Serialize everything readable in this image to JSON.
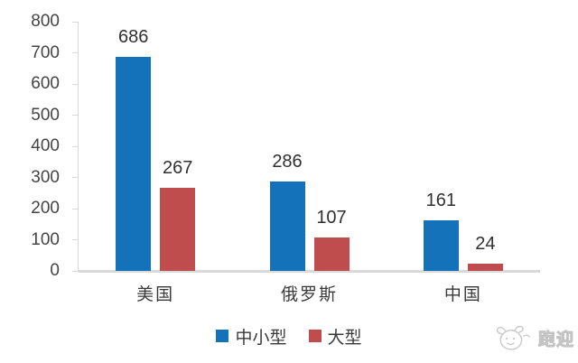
{
  "chart_data": {
    "type": "bar",
    "categories": [
      "美国",
      "俄罗斯",
      "中国"
    ],
    "series": [
      {
        "name": "中小型",
        "color": "#1372BA",
        "values": [
          686,
          286,
          161
        ]
      },
      {
        "name": "大型",
        "color": "#C04D4D",
        "values": [
          267,
          107,
          24
        ]
      }
    ],
    "title": "",
    "xlabel": "",
    "ylabel": "",
    "ylim": [
      0,
      800
    ],
    "ytick_step": 100,
    "yticks": [
      0,
      100,
      200,
      300,
      400,
      500,
      600,
      700,
      800
    ],
    "grid": false,
    "legend_position": "bottom",
    "axis_color": "#D9D9D9",
    "label_color": "#3a3a3a"
  },
  "watermark": {
    "icon": "doodle-animal-face-icon",
    "text": "跑迎",
    "color": "#C6C6C6"
  }
}
